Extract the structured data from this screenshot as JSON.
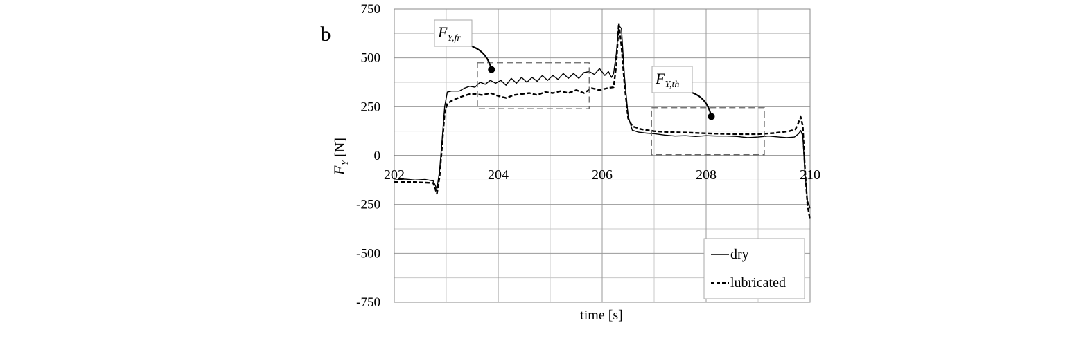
{
  "panel_label": "b",
  "chart_data": {
    "type": "line",
    "xlabel": "time [s]",
    "ylabel": {
      "base": "F",
      "subscript": "Y",
      "unit": "[N]"
    },
    "xlim": [
      202,
      210
    ],
    "ylim": [
      -750,
      750
    ],
    "x_ticks": [
      202,
      204,
      206,
      208,
      210
    ],
    "x_minor_gridlines": [
      203,
      205,
      207,
      209
    ],
    "y_tick_labels": [
      "750",
      "500",
      "250",
      "0",
      "-250",
      "-500",
      "-750"
    ],
    "y_tick_values": [
      750,
      500,
      250,
      0,
      -250,
      -500,
      -750
    ],
    "y_minor_gridlines": [
      625,
      375,
      125,
      -125,
      -375,
      -625
    ],
    "grid": true,
    "legend_position": "bottom-right",
    "series": [
      {
        "name": "dry",
        "style": "solid",
        "points": [
          [
            202.0,
            -125
          ],
          [
            202.2,
            -120
          ],
          [
            202.4,
            -125
          ],
          [
            202.6,
            -122
          ],
          [
            202.75,
            -130
          ],
          [
            202.82,
            -170
          ],
          [
            202.87,
            -80
          ],
          [
            202.92,
            80
          ],
          [
            202.97,
            250
          ],
          [
            203.02,
            325
          ],
          [
            203.1,
            330
          ],
          [
            203.25,
            330
          ],
          [
            203.35,
            345
          ],
          [
            203.45,
            355
          ],
          [
            203.55,
            350
          ],
          [
            203.65,
            375
          ],
          [
            203.75,
            365
          ],
          [
            203.85,
            385
          ],
          [
            203.95,
            370
          ],
          [
            204.05,
            385
          ],
          [
            204.15,
            360
          ],
          [
            204.25,
            395
          ],
          [
            204.35,
            370
          ],
          [
            204.45,
            400
          ],
          [
            204.55,
            375
          ],
          [
            204.65,
            400
          ],
          [
            204.75,
            380
          ],
          [
            204.85,
            410
          ],
          [
            204.95,
            385
          ],
          [
            205.05,
            410
          ],
          [
            205.15,
            390
          ],
          [
            205.25,
            420
          ],
          [
            205.35,
            395
          ],
          [
            205.45,
            420
          ],
          [
            205.55,
            395
          ],
          [
            205.65,
            425
          ],
          [
            205.75,
            430
          ],
          [
            205.85,
            415
          ],
          [
            205.95,
            445
          ],
          [
            206.05,
            410
          ],
          [
            206.12,
            430
          ],
          [
            206.18,
            400
          ],
          [
            206.22,
            420
          ],
          [
            206.27,
            520
          ],
          [
            206.32,
            665
          ],
          [
            206.37,
            650
          ],
          [
            206.43,
            400
          ],
          [
            206.5,
            200
          ],
          [
            206.58,
            130
          ],
          [
            206.7,
            120
          ],
          [
            206.85,
            115
          ],
          [
            207.0,
            112
          ],
          [
            207.2,
            105
          ],
          [
            207.4,
            100
          ],
          [
            207.6,
            102
          ],
          [
            207.8,
            98
          ],
          [
            208.0,
            102
          ],
          [
            208.2,
            100
          ],
          [
            208.4,
            100
          ],
          [
            208.6,
            98
          ],
          [
            208.8,
            92
          ],
          [
            209.0,
            95
          ],
          [
            209.2,
            100
          ],
          [
            209.4,
            95
          ],
          [
            209.55,
            92
          ],
          [
            209.7,
            95
          ],
          [
            209.78,
            112
          ],
          [
            209.82,
            128
          ],
          [
            209.86,
            100
          ],
          [
            209.9,
            -80
          ],
          [
            209.95,
            -230
          ],
          [
            210.0,
            -270
          ]
        ]
      },
      {
        "name": "lubricated",
        "style": "dashed",
        "points": [
          [
            202.0,
            -135
          ],
          [
            202.4,
            -135
          ],
          [
            202.75,
            -140
          ],
          [
            202.82,
            -195
          ],
          [
            202.87,
            -110
          ],
          [
            202.92,
            50
          ],
          [
            202.97,
            220
          ],
          [
            203.02,
            265
          ],
          [
            203.1,
            280
          ],
          [
            203.25,
            298
          ],
          [
            203.45,
            315
          ],
          [
            203.55,
            315
          ],
          [
            203.7,
            310
          ],
          [
            203.85,
            320
          ],
          [
            204.0,
            305
          ],
          [
            204.15,
            295
          ],
          [
            204.3,
            310
          ],
          [
            204.45,
            315
          ],
          [
            204.6,
            320
          ],
          [
            204.75,
            310
          ],
          [
            204.9,
            325
          ],
          [
            205.05,
            320
          ],
          [
            205.2,
            330
          ],
          [
            205.35,
            320
          ],
          [
            205.5,
            335
          ],
          [
            205.65,
            320
          ],
          [
            205.8,
            345
          ],
          [
            205.95,
            335
          ],
          [
            206.1,
            345
          ],
          [
            206.22,
            350
          ],
          [
            206.27,
            460
          ],
          [
            206.32,
            678
          ],
          [
            206.37,
            560
          ],
          [
            206.43,
            360
          ],
          [
            206.5,
            190
          ],
          [
            206.58,
            150
          ],
          [
            206.75,
            135
          ],
          [
            207.0,
            125
          ],
          [
            207.3,
            120
          ],
          [
            207.6,
            118
          ],
          [
            207.9,
            115
          ],
          [
            208.2,
            112
          ],
          [
            208.5,
            110
          ],
          [
            208.8,
            110
          ],
          [
            209.0,
            110
          ],
          [
            209.3,
            115
          ],
          [
            209.6,
            125
          ],
          [
            209.72,
            135
          ],
          [
            209.78,
            170
          ],
          [
            209.82,
            198
          ],
          [
            209.86,
            150
          ],
          [
            209.9,
            -60
          ],
          [
            209.95,
            -250
          ],
          [
            210.0,
            -330
          ]
        ]
      }
    ],
    "annotations": [
      {
        "main": "F",
        "sub": "Y,fr",
        "box": {
          "x0": 203.6,
          "x1": 205.75,
          "y0": 240,
          "y1": 475
        },
        "marker": [
          203.87,
          440
        ]
      },
      {
        "main": "F",
        "sub": "Y,th",
        "box": {
          "x0": 206.95,
          "x1": 209.12,
          "y0": 5,
          "y1": 245
        },
        "marker": [
          208.1,
          200
        ]
      }
    ]
  }
}
